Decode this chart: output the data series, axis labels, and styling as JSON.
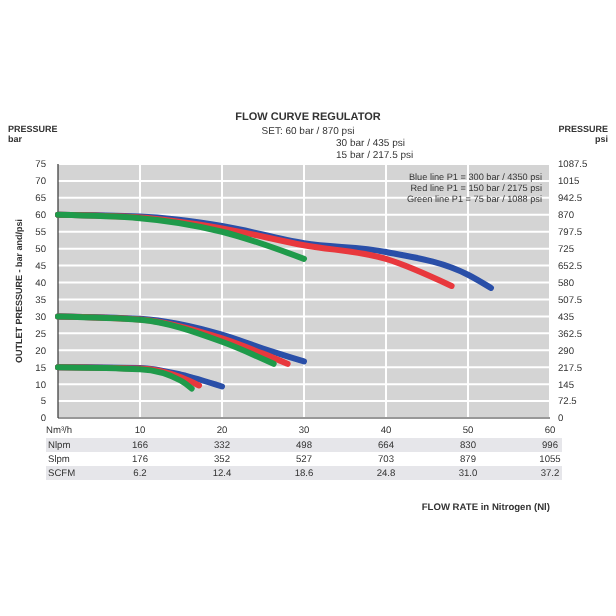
{
  "chart_data": {
    "type": "line",
    "title": "FLOW CURVE REGULATOR",
    "subtitle": "SET: 60 bar / 870 psi\n30 bar / 435 psi\n15 bar / 217.5 psi",
    "ylabel": "PRESSURE\nbar",
    "y2label": "PRESSURE\npsi",
    "annotations": [
      "OUTLET PRESSURE - bar and/psi",
      "Blue line P1 = 300 bar / 4350 psi",
      "Red line P1 = 150 bar / 2175 psi",
      "Green line P1 = 75 bar / 1088 psi",
      "Nm³/h",
      "Nlpm 166 332 498 664 830 996",
      "Slpm 176 352 527 703 879 1055",
      "SCFM 6.2 12.4 18.6 24.8 31.0 37.2",
      "FLOW RATE in Nitrogen (Nl)"
    ],
    "series": [
      {
        "color": "#2a4fa8",
        "x": [
          0,
          10,
          20,
          30,
          40,
          50,
          52.8
        ],
        "values": [
          60,
          59.5,
          56.7,
          51.6,
          49,
          42.3,
          38.4
        ]
      },
      {
        "color": "#e8383d",
        "x": [
          0,
          10,
          20,
          30,
          40,
          48
        ],
        "values": [
          60,
          59.2,
          56,
          51,
          47,
          39
        ]
      },
      {
        "color": "#1f9a4a",
        "x": [
          0,
          10,
          20,
          30
        ],
        "values": [
          60,
          59,
          55,
          47
        ]
      },
      {
        "color": "#2a4fa8",
        "x": [
          0,
          10,
          20,
          25,
          30
        ],
        "values": [
          30,
          29.3,
          24.6,
          20.5,
          16.7
        ]
      },
      {
        "color": "#e8383d",
        "x": [
          0,
          10,
          20,
          25,
          28
        ],
        "values": [
          30,
          29.1,
          23.5,
          19,
          16
        ]
      },
      {
        "color": "#1f9a4a",
        "x": [
          0,
          10,
          20,
          26.3
        ],
        "values": [
          30,
          29,
          22.5,
          16
        ]
      },
      {
        "color": "#2a4fa8",
        "x": [
          0,
          10,
          15,
          20
        ],
        "values": [
          15,
          14.8,
          12.8,
          9.3
        ]
      },
      {
        "color": "#e8383d",
        "x": [
          0,
          10,
          15,
          17.2
        ],
        "values": [
          15,
          14.6,
          12,
          9.6
        ]
      },
      {
        "color": "#1f9a4a",
        "x": [
          0,
          10,
          15,
          16.3
        ],
        "values": [
          15,
          14.4,
          11,
          8.7
        ]
      }
    ],
    "marker": "none",
    "line_style": "solid",
    "grid": true,
    "xlim": [
      0,
      60
    ],
    "xticks": [
      10,
      20,
      30,
      40,
      50,
      60
    ],
    "ylim": [
      0,
      75
    ],
    "yticks": [
      0,
      5,
      10,
      15,
      20,
      25,
      30,
      35,
      40,
      45,
      50,
      55,
      60,
      65,
      70,
      75
    ],
    "y2lim": [
      0,
      1087.5
    ],
    "y2ticks": [
      0,
      72.5,
      145,
      217.5,
      290,
      362.5,
      435,
      507.5,
      580,
      652.5,
      725,
      797.5,
      870,
      942.5,
      1015,
      1087.5
    ]
  }
}
